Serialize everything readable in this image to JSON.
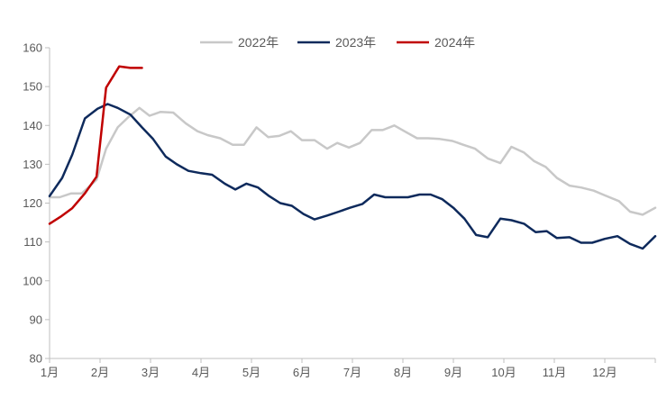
{
  "chart_data": {
    "type": "line",
    "title": "",
    "xlabel": "",
    "ylabel": "",
    "ylim": [
      80,
      160
    ],
    "xlim": [
      1,
      13
    ],
    "yticks": [
      80,
      90,
      100,
      110,
      120,
      130,
      140,
      150,
      160
    ],
    "xticks": [
      {
        "value": 1,
        "label": "1月"
      },
      {
        "value": 2,
        "label": "2月"
      },
      {
        "value": 3,
        "label": "3月"
      },
      {
        "value": 4,
        "label": "4月"
      },
      {
        "value": 5,
        "label": "5月"
      },
      {
        "value": 6,
        "label": "6月"
      },
      {
        "value": 7,
        "label": "7月"
      },
      {
        "value": 8,
        "label": "8月"
      },
      {
        "value": 9,
        "label": "9月"
      },
      {
        "value": 10,
        "label": "10月"
      },
      {
        "value": 11,
        "label": "11月"
      },
      {
        "value": 12,
        "label": "12月"
      }
    ],
    "grid": false,
    "legend_position": "top-center",
    "series": [
      {
        "name": "2022年",
        "color": "#C8C8C8",
        "x": [
          1.0,
          1.2,
          1.43,
          1.64,
          1.93,
          2.12,
          2.35,
          2.55,
          2.78,
          2.98,
          3.2,
          3.45,
          3.7,
          3.93,
          4.13,
          4.38,
          4.63,
          4.85,
          5.1,
          5.33,
          5.55,
          5.78,
          6.0,
          6.25,
          6.5,
          6.7,
          6.93,
          7.15,
          7.38,
          7.6,
          7.83,
          8.03,
          8.28,
          8.5,
          8.73,
          8.98,
          9.2,
          9.43,
          9.68,
          9.93,
          10.15,
          10.4,
          10.6,
          10.83,
          11.05,
          11.3,
          11.53,
          11.78,
          12.0,
          12.28,
          12.5,
          12.75,
          13.0
        ],
        "values": [
          121.5,
          121.5,
          122.5,
          122.5,
          126.0,
          134.0,
          139.5,
          142.0,
          144.5,
          142.5,
          143.5,
          143.3,
          140.5,
          138.5,
          137.5,
          136.7,
          135.0,
          135.0,
          139.5,
          137.0,
          137.3,
          138.5,
          136.2,
          136.2,
          134.0,
          135.5,
          134.3,
          135.5,
          138.8,
          138.8,
          140.0,
          138.5,
          136.7,
          136.7,
          136.5,
          136.0,
          135.0,
          134.0,
          131.5,
          130.3,
          134.5,
          133.0,
          130.8,
          129.3,
          126.5,
          124.5,
          124.0,
          123.2,
          122.0,
          120.5,
          117.8,
          117.0,
          118.8
        ]
      },
      {
        "name": "2023年",
        "color": "#0E2A5C",
        "x": [
          1.0,
          1.25,
          1.45,
          1.7,
          1.95,
          2.15,
          2.35,
          2.6,
          2.83,
          3.05,
          3.3,
          3.52,
          3.75,
          4.0,
          4.22,
          4.47,
          4.68,
          4.9,
          5.13,
          5.35,
          5.57,
          5.8,
          6.03,
          6.25,
          6.5,
          6.73,
          6.95,
          7.2,
          7.43,
          7.65,
          7.88,
          8.1,
          8.33,
          8.55,
          8.78,
          9.0,
          9.22,
          9.45,
          9.68,
          9.93,
          10.15,
          10.4,
          10.63,
          10.85,
          11.05,
          11.3,
          11.53,
          11.75,
          12.0,
          12.25,
          12.5,
          12.75,
          13.0
        ],
        "values": [
          121.8,
          126.5,
          132.5,
          141.8,
          144.3,
          145.5,
          144.5,
          142.8,
          139.5,
          136.5,
          132.0,
          130.0,
          128.3,
          127.7,
          127.3,
          125.0,
          123.5,
          125.0,
          124.0,
          121.8,
          120.0,
          119.3,
          117.2,
          115.8,
          116.8,
          117.8,
          118.8,
          119.8,
          122.2,
          121.5,
          121.5,
          121.5,
          122.2,
          122.2,
          121.0,
          118.8,
          116.0,
          111.8,
          111.2,
          116.0,
          115.6,
          114.7,
          112.5,
          112.8,
          111.0,
          111.2,
          109.8,
          109.8,
          110.8,
          111.5,
          109.5,
          108.3,
          111.5
        ]
      },
      {
        "name": "2024年",
        "color": "#C00000",
        "x": [
          1.0,
          1.22,
          1.45,
          1.7,
          1.93,
          2.12,
          2.38,
          2.6,
          2.83
        ],
        "values": [
          114.7,
          116.5,
          118.7,
          122.5,
          126.8,
          149.7,
          155.2,
          154.8,
          154.8
        ]
      }
    ]
  }
}
